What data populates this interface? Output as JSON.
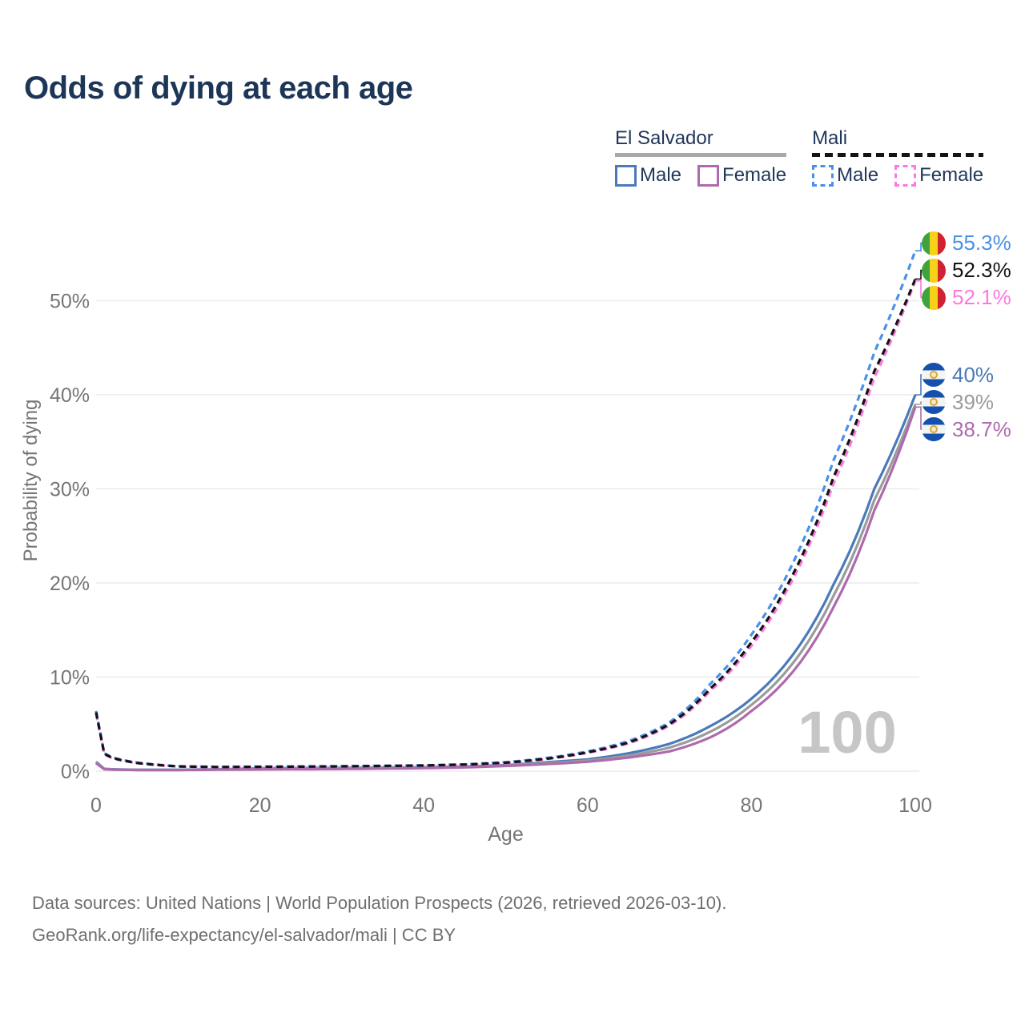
{
  "title": "Odds of dying at each age",
  "watermark": "100",
  "footer": {
    "line1": "Data sources: United Nations | World Population Prospects (2026, retrieved 2026-03-10).",
    "line2": "GeoRank.org/life-expectancy/el-salvador/mali | CC BY"
  },
  "legend": {
    "groups": [
      {
        "country": "El Salvador",
        "line_style": "solid",
        "underline_color": "#a8a8a8",
        "items": [
          {
            "label": "Male",
            "color": "#4a7ab9"
          },
          {
            "label": "Female",
            "color": "#ad6bad"
          }
        ]
      },
      {
        "country": "Mali",
        "line_style": "dashed",
        "underline_color": "#141414",
        "items": [
          {
            "label": "Male",
            "color": "#4a90e8"
          },
          {
            "label": "Female",
            "color": "#ff78e1"
          }
        ]
      }
    ]
  },
  "chart_data": {
    "type": "line",
    "title": "Odds of dying at each age",
    "xlabel": "Age",
    "ylabel": "Probability of dying",
    "x_ticks": [
      0,
      20,
      40,
      60,
      80,
      100
    ],
    "y_tick_labels": [
      "0%",
      "10%",
      "20%",
      "30%",
      "40%",
      "50%"
    ],
    "xlim": [
      0,
      100
    ],
    "ylim": [
      0,
      56
    ],
    "grid": true,
    "legend_position": "top-right",
    "ages": [
      0,
      1,
      2,
      5,
      10,
      15,
      20,
      25,
      30,
      35,
      40,
      45,
      50,
      55,
      60,
      65,
      70,
      75,
      80,
      85,
      90,
      95,
      100
    ],
    "series": [
      {
        "id": "es-male",
        "country": "El Salvador",
        "sex": "male",
        "name": "El Salvador Male",
        "color": "#4a7ab9",
        "dashed": false,
        "end_label": "40%",
        "flag": "el-salvador",
        "values": [
          1.0,
          0.25,
          0.2,
          0.15,
          0.15,
          0.2,
          0.3,
          0.33,
          0.35,
          0.38,
          0.42,
          0.5,
          0.65,
          0.95,
          1.25,
          1.9,
          2.9,
          4.8,
          7.7,
          12.3,
          19.8,
          30.0,
          40.0
        ]
      },
      {
        "id": "es-both",
        "country": "El Salvador",
        "sex": "both",
        "name": "El Salvador Both sexes",
        "color": "#9b9b9b",
        "dashed": false,
        "end_label": "39%",
        "flag": "el-salvador",
        "values": [
          0.93,
          0.22,
          0.18,
          0.13,
          0.13,
          0.18,
          0.24,
          0.27,
          0.29,
          0.33,
          0.37,
          0.45,
          0.6,
          0.85,
          1.12,
          1.65,
          2.5,
          4.2,
          7.05,
          11.4,
          18.6,
          28.8,
          39.0
        ]
      },
      {
        "id": "es-female",
        "country": "El Salvador",
        "sex": "female",
        "name": "El Salvador Female",
        "color": "#ad6bad",
        "dashed": false,
        "end_label": "38.7%",
        "flag": "el-salvador",
        "values": [
          0.85,
          0.2,
          0.16,
          0.12,
          0.12,
          0.15,
          0.18,
          0.2,
          0.23,
          0.27,
          0.32,
          0.4,
          0.55,
          0.75,
          1.0,
          1.45,
          2.1,
          3.6,
          6.4,
          10.5,
          17.4,
          27.7,
          38.7
        ]
      },
      {
        "id": "mali-male",
        "country": "Mali",
        "sex": "male",
        "name": "Mali Male",
        "color": "#4a90e8",
        "dashed": true,
        "end_label": "55.3%",
        "flag": "mali",
        "values": [
          6.4,
          1.9,
          1.45,
          0.9,
          0.52,
          0.46,
          0.48,
          0.5,
          0.53,
          0.57,
          0.62,
          0.72,
          0.95,
          1.4,
          2.1,
          3.2,
          5.2,
          9.3,
          14.5,
          22.0,
          33.0,
          44.5,
          55.3
        ]
      },
      {
        "id": "mali-female",
        "country": "Mali",
        "sex": "female",
        "name": "Mali Female",
        "color": "#ff78e1",
        "dashed": true,
        "end_label": "52.1%",
        "flag": "mali",
        "values": [
          6.1,
          1.8,
          1.35,
          0.85,
          0.49,
          0.43,
          0.44,
          0.46,
          0.49,
          0.53,
          0.58,
          0.68,
          0.87,
          1.28,
          1.95,
          2.95,
          4.85,
          8.55,
          13.3,
          20.3,
          30.5,
          41.8,
          52.1
        ]
      },
      {
        "id": "mali-both",
        "country": "Mali",
        "sex": "both",
        "name": "Mali Both sexes",
        "color": "#141414",
        "dashed": true,
        "end_label": "52.3%",
        "flag": "mali",
        "values": [
          6.25,
          1.85,
          1.4,
          0.87,
          0.5,
          0.44,
          0.46,
          0.48,
          0.51,
          0.55,
          0.6,
          0.7,
          0.9,
          1.32,
          2.0,
          3.05,
          5.0,
          8.8,
          13.7,
          20.8,
          31.2,
          42.5,
          52.3
        ]
      }
    ]
  }
}
